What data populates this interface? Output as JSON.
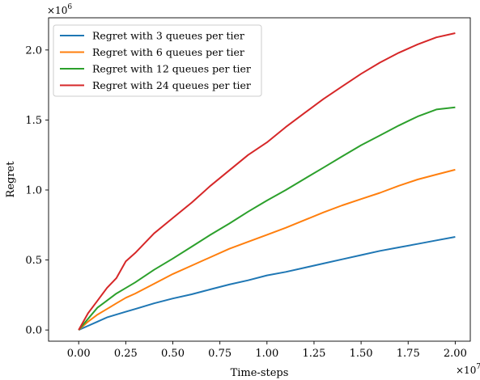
{
  "chart_data": {
    "type": "line",
    "title": "",
    "xlabel": "Time-steps",
    "ylabel": "Regret",
    "x_multiplier_label": "×10",
    "x_multiplier_exp": "7",
    "y_multiplier_label": "×10",
    "y_multiplier_exp": "6",
    "xlim": [
      -0.16,
      2.08
    ],
    "ylim": [
      -0.08,
      2.23
    ],
    "x_ticks": [
      0.0,
      0.25,
      0.5,
      0.75,
      1.0,
      1.25,
      1.5,
      1.75,
      2.0
    ],
    "x_tick_labels": [
      "0.00",
      "0.25",
      "0.50",
      "0.75",
      "1.00",
      "1.25",
      "1.50",
      "1.75",
      "2.00"
    ],
    "y_ticks": [
      0.0,
      0.5,
      1.0,
      1.5,
      2.0
    ],
    "y_tick_labels": [
      "0.0",
      "0.5",
      "1.0",
      "1.5",
      "2.0"
    ],
    "grid": false,
    "legend_position": "top-left",
    "x": [
      0.0,
      0.05,
      0.1,
      0.15,
      0.2,
      0.25,
      0.3,
      0.4,
      0.5,
      0.6,
      0.7,
      0.8,
      0.9,
      1.0,
      1.1,
      1.2,
      1.3,
      1.4,
      1.5,
      1.6,
      1.7,
      1.8,
      1.9,
      2.0
    ],
    "series": [
      {
        "name": "Regret with 3 queues per tier",
        "color": "#1f77b4",
        "values": [
          0.0,
          0.03,
          0.06,
          0.09,
          0.11,
          0.13,
          0.15,
          0.19,
          0.225,
          0.255,
          0.29,
          0.325,
          0.355,
          0.39,
          0.415,
          0.445,
          0.475,
          0.505,
          0.535,
          0.565,
          0.59,
          0.615,
          0.64,
          0.665
        ]
      },
      {
        "name": "Regret with 6 queues per tier",
        "color": "#ff7f0e",
        "values": [
          0.0,
          0.06,
          0.11,
          0.15,
          0.19,
          0.23,
          0.26,
          0.33,
          0.4,
          0.46,
          0.52,
          0.58,
          0.63,
          0.68,
          0.73,
          0.785,
          0.84,
          0.89,
          0.935,
          0.98,
          1.03,
          1.075,
          1.11,
          1.145
        ]
      },
      {
        "name": "Regret with 12 queues per tier",
        "color": "#2ca02c",
        "values": [
          0.0,
          0.08,
          0.16,
          0.21,
          0.26,
          0.3,
          0.34,
          0.43,
          0.51,
          0.595,
          0.68,
          0.76,
          0.845,
          0.925,
          1.0,
          1.08,
          1.16,
          1.24,
          1.32,
          1.39,
          1.46,
          1.525,
          1.575,
          1.59
        ]
      },
      {
        "name": "Regret with 24 queues per tier",
        "color": "#d62728",
        "values": [
          0.0,
          0.12,
          0.21,
          0.3,
          0.37,
          0.49,
          0.55,
          0.69,
          0.8,
          0.91,
          1.03,
          1.14,
          1.25,
          1.34,
          1.45,
          1.55,
          1.65,
          1.74,
          1.83,
          1.91,
          1.98,
          2.04,
          2.09,
          2.12
        ]
      }
    ]
  }
}
